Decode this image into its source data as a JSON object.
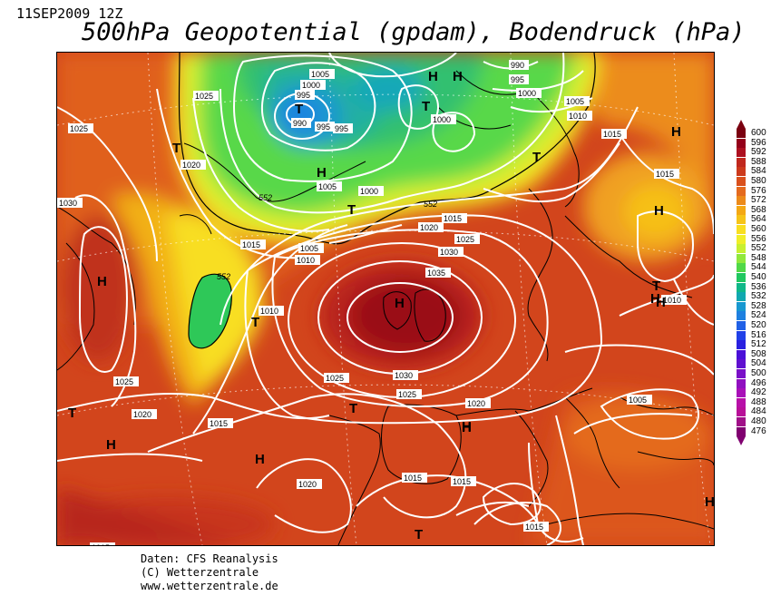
{
  "header": {
    "date": "11SEP2009 12Z",
    "title": "500hPa Geopotential (gpdam), Bodendruck (hPa)"
  },
  "credits": {
    "line1": "Daten: CFS Reanalysis",
    "line2": "(C) Wetterzentrale",
    "line3": "www.wetterzentrale.de"
  },
  "legend": {
    "values": [
      "600",
      "596",
      "592",
      "588",
      "584",
      "580",
      "576",
      "572",
      "568",
      "564",
      "560",
      "556",
      "552",
      "548",
      "544",
      "540",
      "536",
      "532",
      "528",
      "524",
      "520",
      "516",
      "512",
      "508",
      "504",
      "500",
      "496",
      "492",
      "488",
      "484",
      "480",
      "476"
    ],
    "colors": [
      "#7a0010",
      "#94001a",
      "#ad1020",
      "#c0281e",
      "#cc3a1c",
      "#d9501c",
      "#e46a1e",
      "#ec8a1a",
      "#f4a814",
      "#f6c418",
      "#f8de20",
      "#f0ee28",
      "#c8f030",
      "#90e83c",
      "#50d848",
      "#20c860",
      "#10b888",
      "#10a8b0",
      "#1898d0",
      "#1e80e0",
      "#2060e6",
      "#2040e8",
      "#2a20e0",
      "#4a10d8",
      "#6010d0",
      "#7a10c8",
      "#9010c0",
      "#a810b8",
      "#b810a8",
      "#b81098",
      "#a01088",
      "#800070"
    ]
  },
  "pressure_labels": [
    {
      "text": "1005"
    },
    {
      "text": "1000"
    },
    {
      "text": "995"
    },
    {
      "text": "990"
    },
    {
      "text": "995"
    },
    {
      "text": "995"
    },
    {
      "text": "1025"
    },
    {
      "text": "1025"
    },
    {
      "text": "1020"
    },
    {
      "text": "1005"
    },
    {
      "text": "1000"
    },
    {
      "text": "1000"
    },
    {
      "text": "990"
    },
    {
      "text": "995"
    },
    {
      "text": "1000"
    },
    {
      "text": "1005"
    },
    {
      "text": "1010"
    },
    {
      "text": "1015"
    },
    {
      "text": "1015"
    },
    {
      "text": "1030"
    },
    {
      "text": "1015"
    },
    {
      "text": "1005"
    },
    {
      "text": "1010"
    },
    {
      "text": "1020"
    },
    {
      "text": "1015"
    },
    {
      "text": "1025"
    },
    {
      "text": "1030"
    },
    {
      "text": "1035"
    },
    {
      "text": "1010"
    },
    {
      "text": "1010"
    },
    {
      "text": "1025"
    },
    {
      "text": "1030"
    },
    {
      "text": "1025"
    },
    {
      "text": "1025"
    },
    {
      "text": "1020"
    },
    {
      "text": "1020"
    },
    {
      "text": "1015"
    },
    {
      "text": "1005"
    },
    {
      "text": "1020"
    },
    {
      "text": "1015"
    },
    {
      "text": "1015"
    },
    {
      "text": "1015"
    },
    {
      "text": "1015"
    }
  ],
  "geopotential_labels": [
    {
      "text": "552"
    },
    {
      "text": "552"
    },
    {
      "text": "552"
    }
  ],
  "centers": [
    {
      "text": "T"
    },
    {
      "text": "T"
    },
    {
      "text": "H"
    },
    {
      "text": "H"
    },
    {
      "text": "T"
    },
    {
      "text": "H"
    },
    {
      "text": "T"
    },
    {
      "text": "H"
    },
    {
      "text": "T"
    },
    {
      "text": "H"
    },
    {
      "text": "H"
    },
    {
      "text": "T"
    },
    {
      "text": "H"
    },
    {
      "text": "T"
    },
    {
      "text": "H"
    },
    {
      "text": "H"
    },
    {
      "text": "T"
    },
    {
      "text": "H"
    },
    {
      "text": "H"
    },
    {
      "text": "T"
    },
    {
      "text": "H"
    },
    {
      "text": "H"
    },
    {
      "text": "T"
    },
    {
      "text": "H"
    }
  ]
}
